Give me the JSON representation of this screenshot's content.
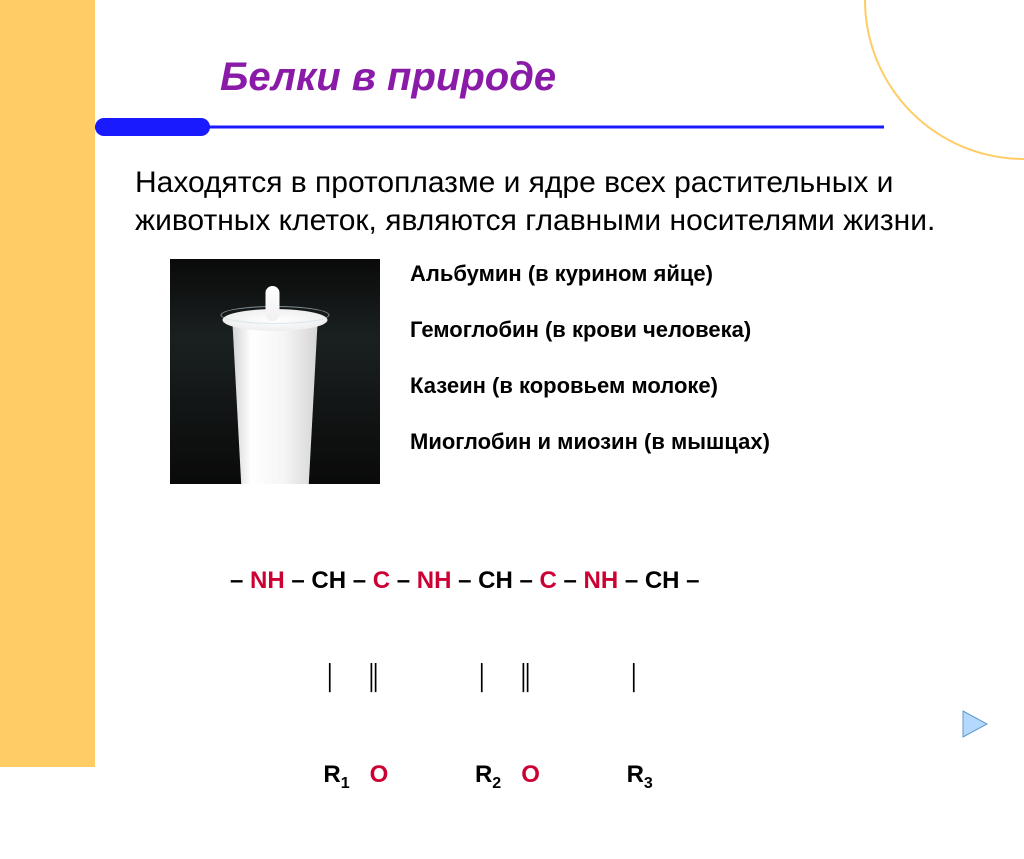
{
  "slide": {
    "title": "Белки в природе",
    "paragraph": "Находятся в протоплазме и ядре всех растительных и животных  клеток, являются главными носителями жизни.",
    "examples": [
      "Альбумин (в курином яйце)",
      "Гемоглобин (в крови человека)",
      "Казеин (в коровьем молоке)",
      "Миоглобин и миозин (в мышцах)"
    ],
    "formula": {
      "line1_parts": [
        {
          "t": "– ",
          "c": "blk"
        },
        {
          "t": "NH",
          "c": "red"
        },
        {
          "t": " – CH – ",
          "c": "blk"
        },
        {
          "t": "C",
          "c": "red"
        },
        {
          "t": " – ",
          "c": "blk"
        },
        {
          "t": "NH",
          "c": "red"
        },
        {
          "t": " – CH – ",
          "c": "blk"
        },
        {
          "t": "C",
          "c": "red"
        },
        {
          "t": " – ",
          "c": "blk"
        },
        {
          "t": "NH",
          "c": "red"
        },
        {
          "t": " – CH –",
          "c": "blk"
        }
      ],
      "line2": "              │    ║              │    ║              │",
      "line3_parts": [
        {
          "t": "              R",
          "c": "blk"
        },
        {
          "t": "1",
          "c": "sub"
        },
        {
          "t": "   ",
          "c": "blk"
        },
        {
          "t": "O",
          "c": "red"
        },
        {
          "t": "             R",
          "c": "blk"
        },
        {
          "t": "2",
          "c": "sub"
        },
        {
          "t": "   ",
          "c": "blk"
        },
        {
          "t": "O",
          "c": "red"
        },
        {
          "t": "             R",
          "c": "blk"
        },
        {
          "t": "3",
          "c": "sub"
        }
      ]
    }
  },
  "colors": {
    "sidebar": "#ffcc66",
    "title": "#8a1ba8",
    "divider": "#1a1aff",
    "formula_red": "#cc0033",
    "nav_arrow": "#99ccff"
  }
}
